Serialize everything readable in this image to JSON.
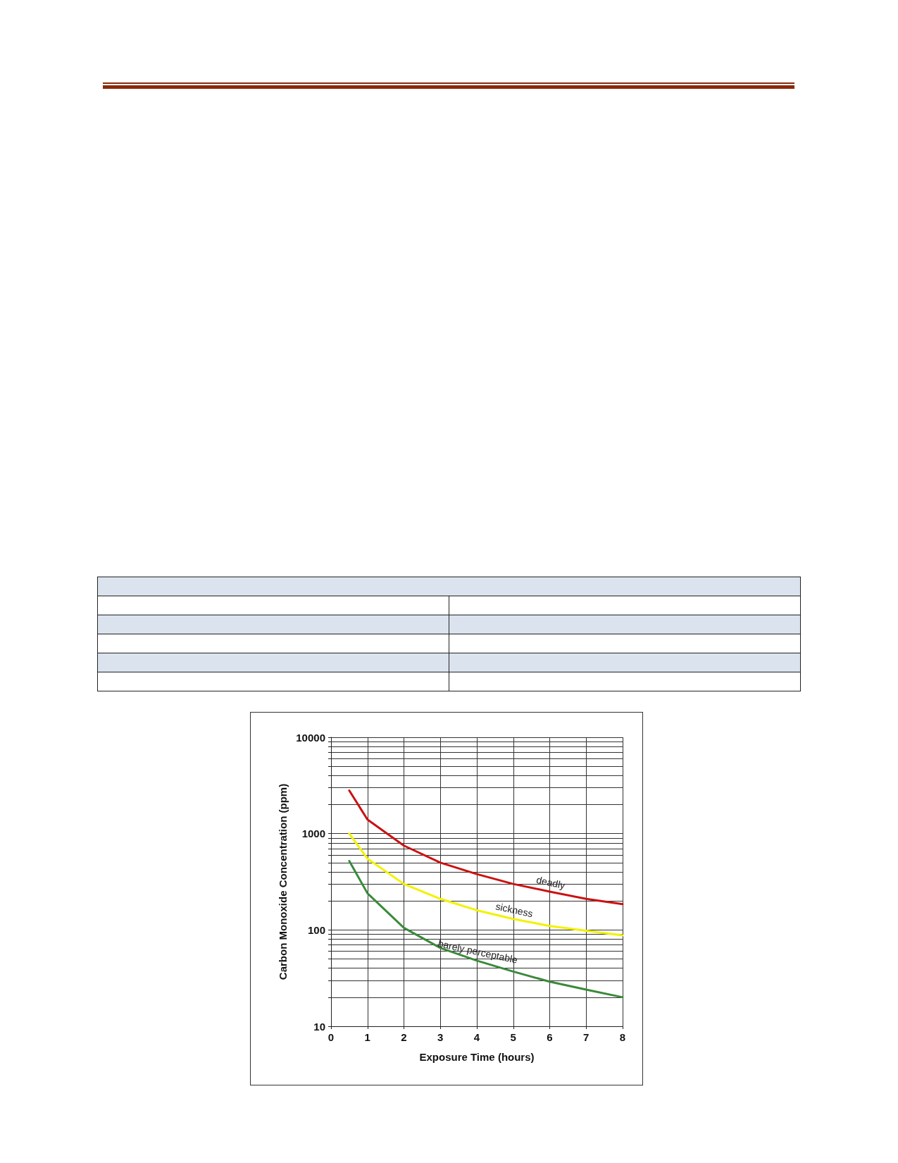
{
  "chart_data": {
    "type": "line",
    "xlabel": "Exposure Time (hours)",
    "ylabel": "Carbon Monoxide Concentration (ppm)",
    "x": [
      0.5,
      1,
      2,
      3,
      4,
      5,
      6,
      7,
      8
    ],
    "series": [
      {
        "name": "deadly",
        "color": "#cc1111",
        "values": [
          2800,
          1400,
          750,
          500,
          380,
          300,
          250,
          210,
          185
        ]
      },
      {
        "name": "sickness",
        "color": "#f2f200",
        "values": [
          1000,
          550,
          300,
          210,
          160,
          130,
          110,
          98,
          88
        ]
      },
      {
        "name": "barely perceptable",
        "color": "#3a8a3a",
        "values": [
          520,
          240,
          105,
          65,
          48,
          37,
          29,
          24,
          20
        ]
      }
    ],
    "log": "y",
    "xlim": [
      0,
      8
    ],
    "xticks": [
      0,
      1,
      2,
      3,
      4,
      5,
      6,
      7,
      8
    ],
    "ylim": [
      10,
      10000
    ],
    "yticks": [
      10,
      {
        "value": 20,
        "label": null
      },
      {
        "value": 30,
        "label": null
      },
      {
        "value": 40,
        "label": null
      },
      {
        "value": 50,
        "label": null
      },
      {
        "value": 60,
        "label": null
      },
      {
        "value": 70,
        "label": null
      },
      {
        "value": 80,
        "label": null
      },
      {
        "value": 90,
        "label": null
      },
      100,
      {
        "value": 200,
        "label": null
      },
      {
        "value": 300,
        "label": null
      },
      {
        "value": 400,
        "label": null
      },
      {
        "value": 500,
        "label": null
      },
      {
        "value": 600,
        "label": null
      },
      {
        "value": 700,
        "label": null
      },
      {
        "value": 800,
        "label": null
      },
      {
        "value": 900,
        "label": null
      },
      1000,
      {
        "value": 2000,
        "label": null
      },
      {
        "value": 3000,
        "label": null
      },
      {
        "value": 4000,
        "label": null
      },
      {
        "value": 5000,
        "label": null
      },
      {
        "value": 6000,
        "label": null
      },
      {
        "value": 7000,
        "label": null
      },
      {
        "value": 8000,
        "label": null
      },
      {
        "value": 9000,
        "label": null
      },
      10000
    ],
    "grid": true,
    "legend": false,
    "marker": "none",
    "line_style": "solid"
  }
}
